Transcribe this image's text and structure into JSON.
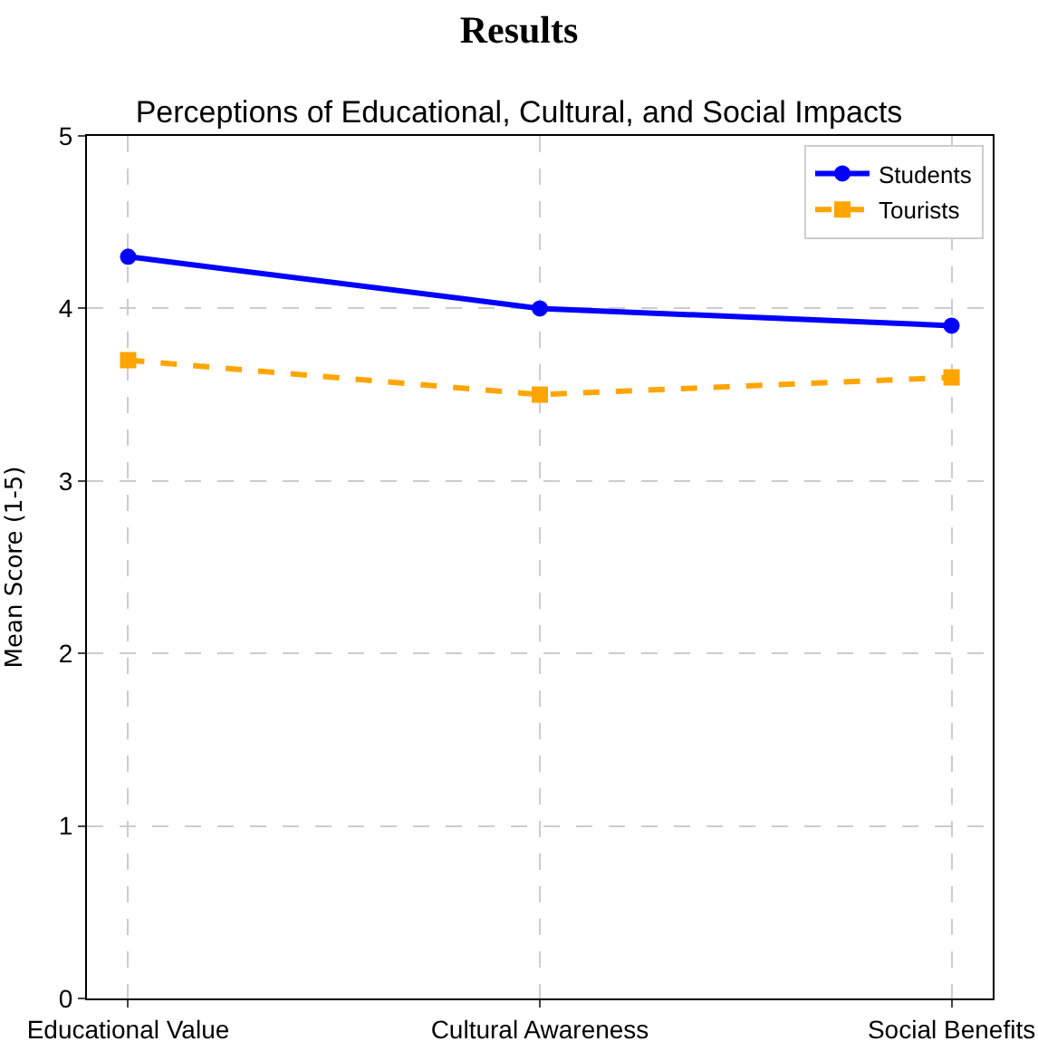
{
  "chart_data": {
    "type": "line",
    "title": "Results",
    "subtitle": "Perceptions of Educational, Cultural, and Social Impacts",
    "ylabel": "Mean Score (1-5)",
    "categories": [
      "Educational Value",
      "Cultural Awareness",
      "Social Benefits"
    ],
    "series": [
      {
        "name": "Students",
        "color": "#0000ff",
        "values": [
          4.3,
          4.0,
          3.9
        ],
        "marker": "circle",
        "line_style": "solid"
      },
      {
        "name": "Tourists",
        "color": "#ffa500",
        "values": [
          3.7,
          3.5,
          3.6
        ],
        "marker": "square",
        "line_style": "dashed"
      }
    ],
    "ylim": [
      0,
      5
    ],
    "yticks": [
      0,
      1,
      2,
      3,
      4,
      5
    ],
    "grid": true,
    "legend": "top right"
  }
}
